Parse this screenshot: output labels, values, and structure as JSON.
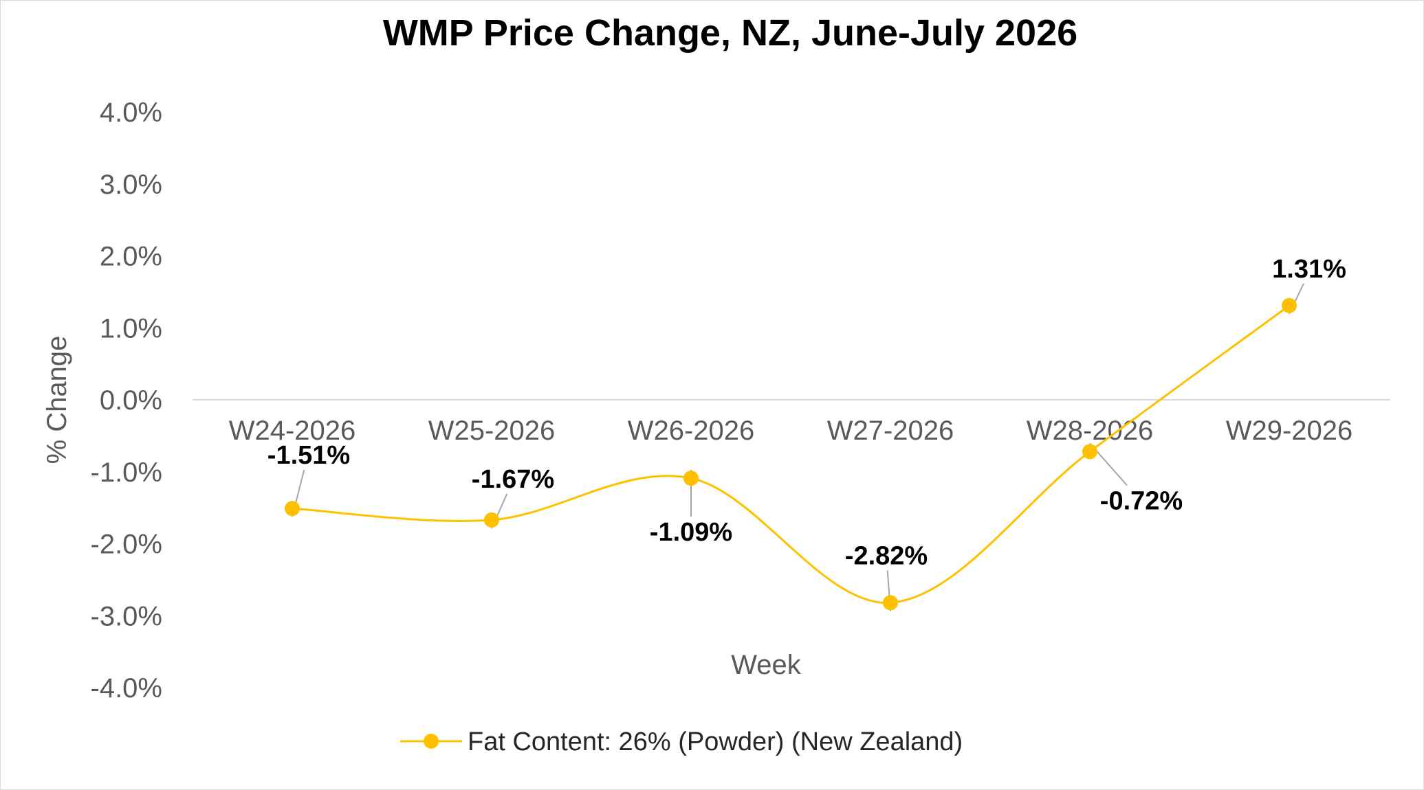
{
  "chart_data": {
    "type": "line",
    "title": "WMP Price Change, NZ, June-July 2026",
    "xlabel": "Week",
    "ylabel": "% Change",
    "categories": [
      "W24-2026",
      "W25-2026",
      "W26-2026",
      "W27-2026",
      "W28-2026",
      "W29-2026"
    ],
    "series": [
      {
        "name": "Fat Content: 26% (Powder) (New Zealand)",
        "values": [
          -1.51,
          -1.67,
          -1.09,
          -2.82,
          -0.72,
          1.31
        ],
        "labels": [
          "-1.51%",
          "-1.67%",
          "-1.09%",
          "-2.82%",
          "-0.72%",
          "1.31%"
        ],
        "color": "#FFC000",
        "smooth": true,
        "markers": "circle"
      }
    ],
    "ylim": [
      -4.0,
      4.0
    ],
    "yticks": [
      4.0,
      3.0,
      2.0,
      1.0,
      0.0,
      -1.0,
      -2.0,
      -3.0,
      -4.0
    ],
    "ytick_labels": [
      "4.0%",
      "3.0%",
      "2.0%",
      "1.0%",
      "0.0%",
      "-1.0%",
      "-2.0%",
      "-3.0%",
      "-4.0%"
    ],
    "grid": false,
    "legend_position": "bottom",
    "axis_color": "#d9d9d9",
    "leader_color": "#a6a6a6"
  }
}
